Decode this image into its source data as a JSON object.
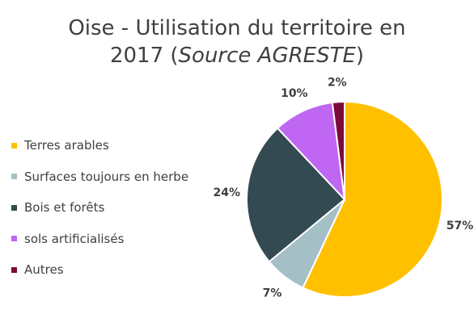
{
  "chart_data": {
    "type": "pie",
    "title_main": "Oise - Utilisation du territoire en",
    "title_year": "2017",
    "title_source": "Source AGRESTE",
    "legend_position": "left",
    "slices": [
      {
        "label": "Terres arables",
        "value": 57,
        "display": "57%",
        "color": "#FFC000"
      },
      {
        "label": "Surfaces toujours en herbe",
        "value": 7,
        "display": "7%",
        "color": "#A5BFC7"
      },
      {
        "label": "Bois et forêts",
        "value": 24,
        "display": "24%",
        "color": "#334A52"
      },
      {
        "label": "sols artificialisés",
        "value": 10,
        "display": "10%",
        "color": "#BF66F2"
      },
      {
        "label": "Autres",
        "value": 2,
        "display": "2%",
        "color": "#7A0A3A"
      }
    ]
  }
}
